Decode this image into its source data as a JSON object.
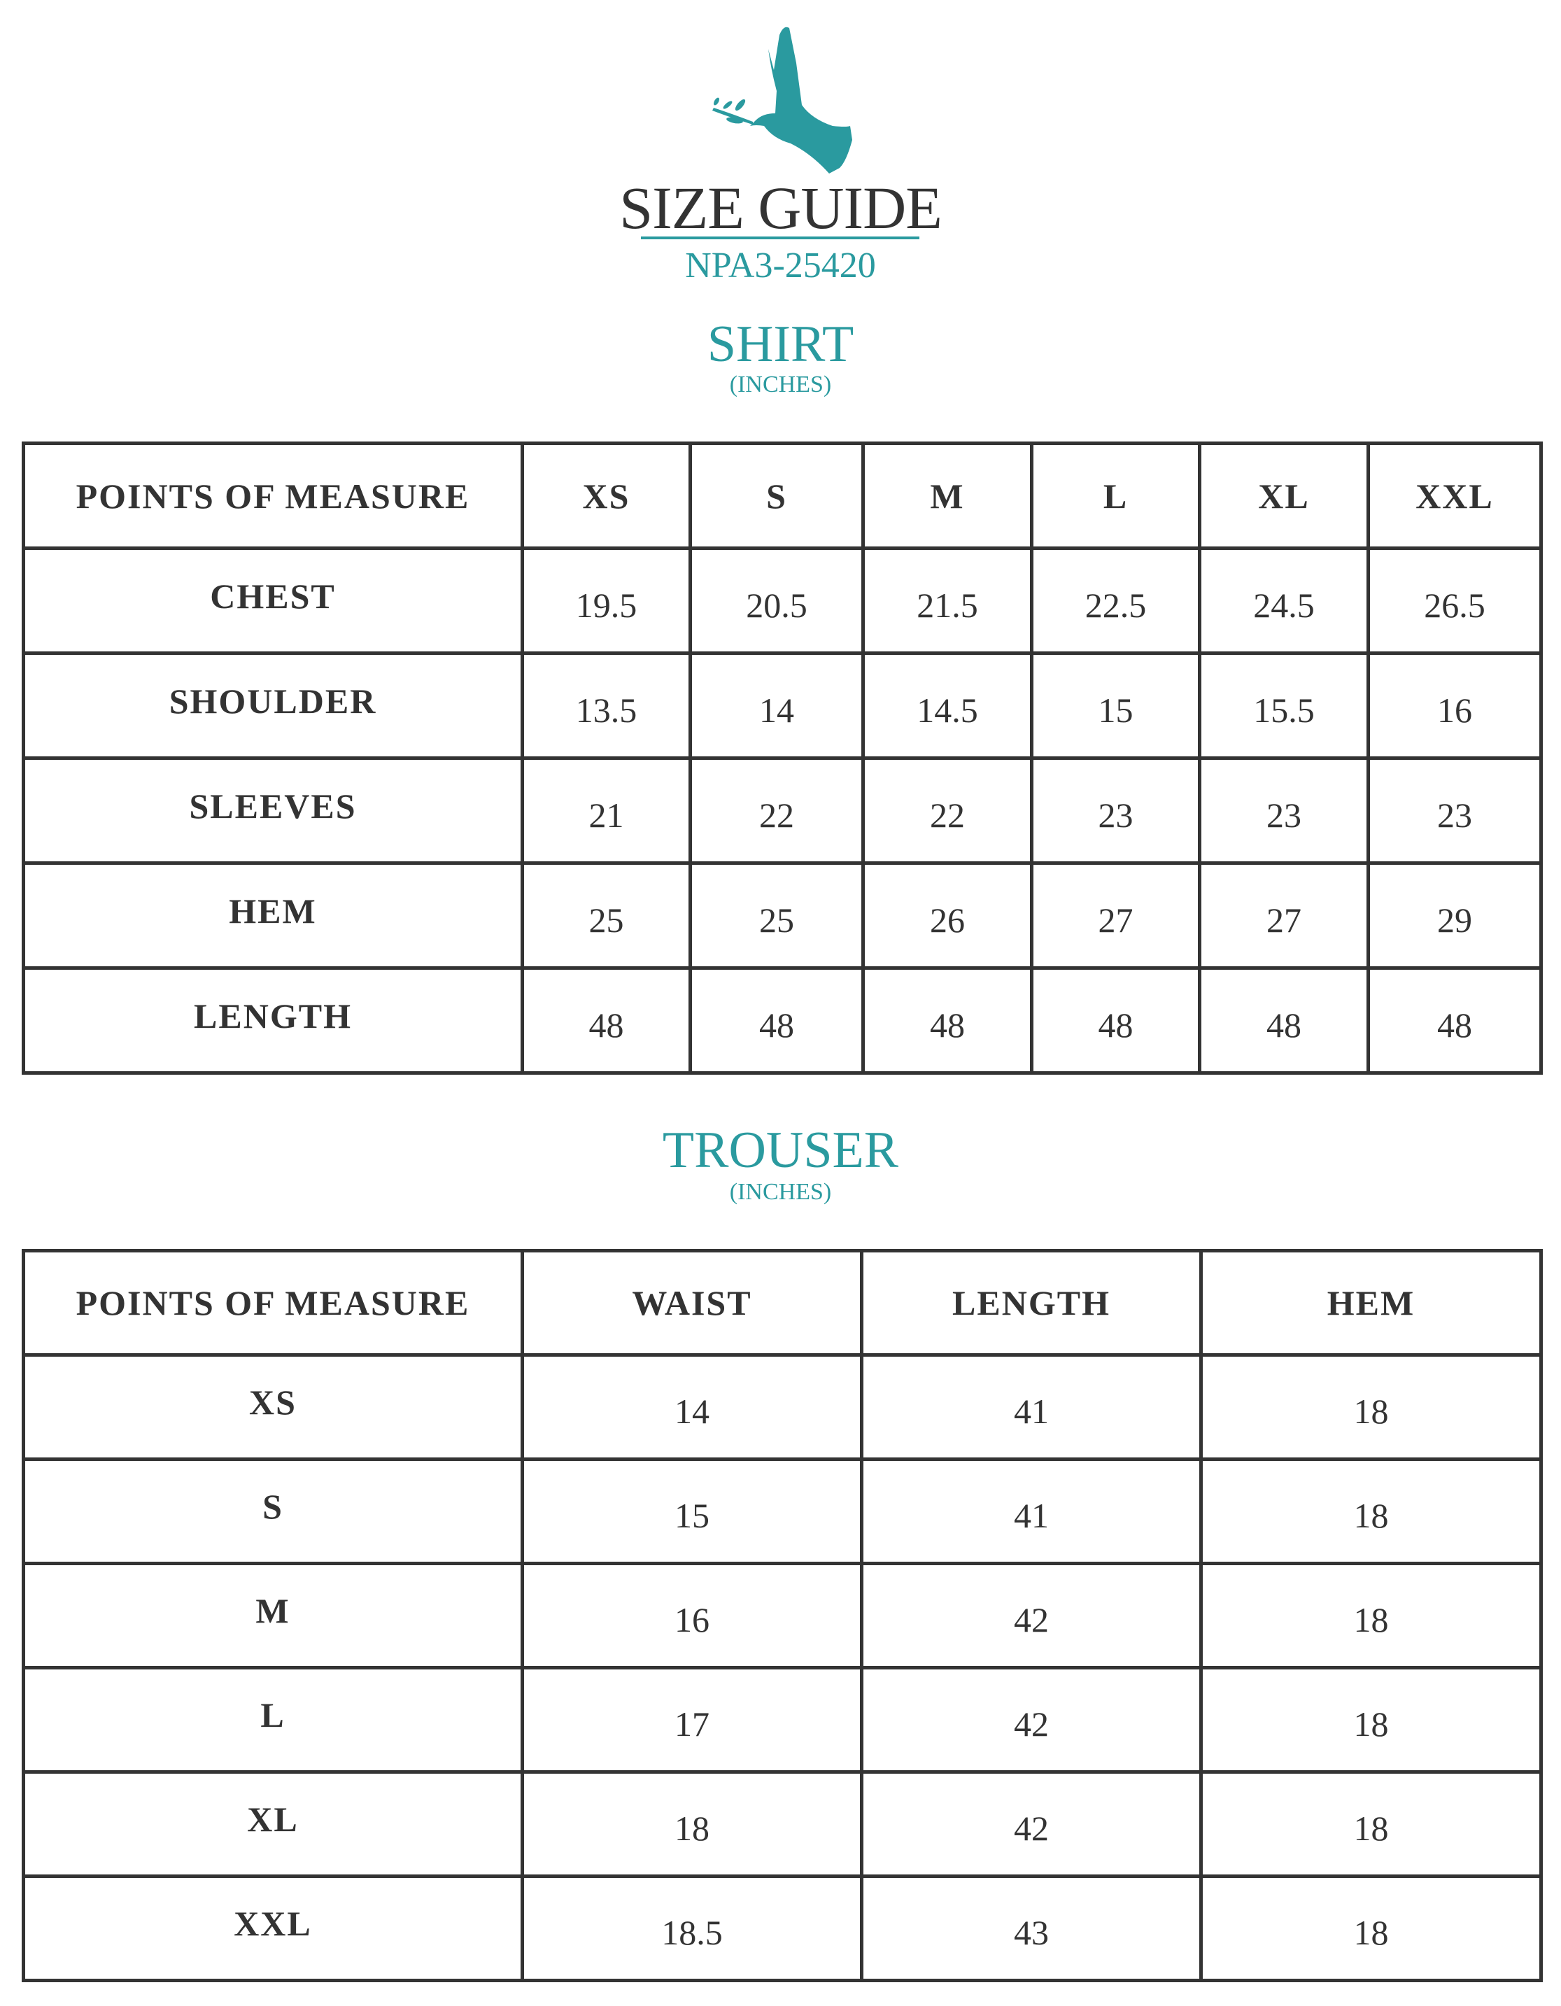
{
  "header": {
    "logo": "dove-with-olive-branch",
    "title": "SIZE GUIDE",
    "product_code": "NPA3-25420"
  },
  "colors": {
    "accent": "#2a9a9f",
    "text": "#333333",
    "border": "#333333"
  },
  "shirt": {
    "title": "SHIRT",
    "unit": "(INCHES)",
    "columns": [
      "POINTS OF MEASURE",
      "XS",
      "S",
      "M",
      "L",
      "XL",
      "XXL"
    ],
    "rows": [
      {
        "label": "CHEST",
        "values": [
          "19.5",
          "20.5",
          "21.5",
          "22.5",
          "24.5",
          "26.5"
        ]
      },
      {
        "label": "SHOULDER",
        "values": [
          "13.5",
          "14",
          "14.5",
          "15",
          "15.5",
          "16"
        ]
      },
      {
        "label": "SLEEVES",
        "values": [
          "21",
          "22",
          "22",
          "23",
          "23",
          "23"
        ]
      },
      {
        "label": "HEM",
        "values": [
          "25",
          "25",
          "26",
          "27",
          "27",
          "29"
        ]
      },
      {
        "label": "LENGTH",
        "values": [
          "48",
          "48",
          "48",
          "48",
          "48",
          "48"
        ]
      }
    ]
  },
  "trouser": {
    "title": "TROUSER",
    "unit": "(INCHES)",
    "columns": [
      "POINTS OF MEASURE",
      "WAIST",
      "LENGTH",
      "HEM"
    ],
    "rows": [
      {
        "label": "XS",
        "values": [
          "14",
          "41",
          "18"
        ]
      },
      {
        "label": "S",
        "values": [
          "15",
          "41",
          "18"
        ]
      },
      {
        "label": "M",
        "values": [
          "16",
          "42",
          "18"
        ]
      },
      {
        "label": "L",
        "values": [
          "17",
          "42",
          "18"
        ]
      },
      {
        "label": "XL",
        "values": [
          "18",
          "42",
          "18"
        ]
      },
      {
        "label": "XXL",
        "values": [
          "18.5",
          "43",
          "18"
        ]
      }
    ]
  }
}
